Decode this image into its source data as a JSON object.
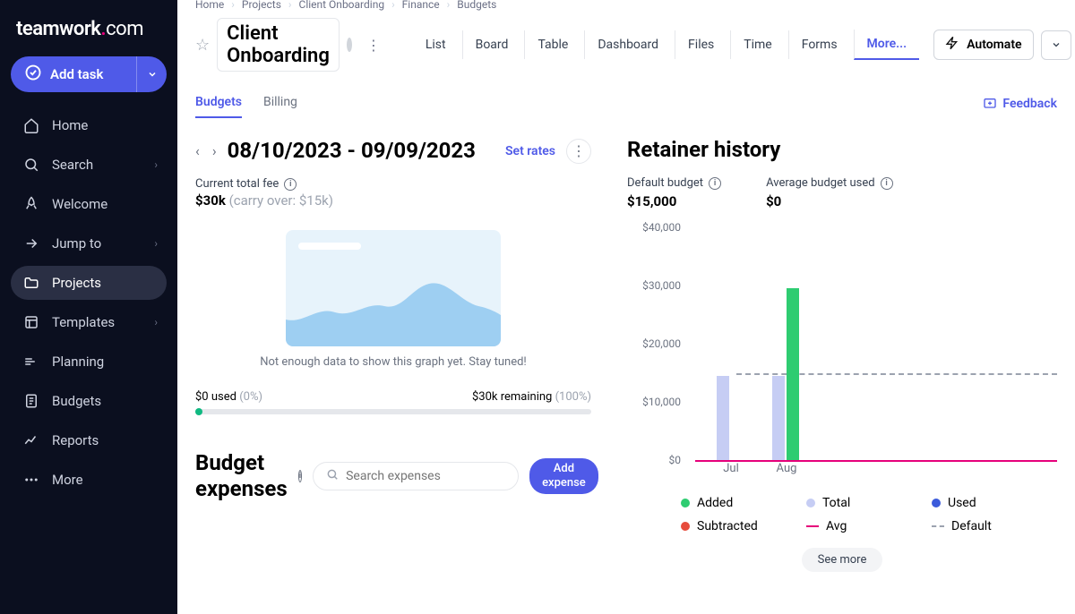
{
  "logo": {
    "main": "teamwork",
    "dot": ".",
    "com": "com"
  },
  "add_task": "Add task",
  "nav": [
    {
      "label": "Home",
      "icon": "home",
      "chev": false
    },
    {
      "label": "Search",
      "icon": "search",
      "chev": true
    },
    {
      "label": "Welcome",
      "icon": "rocket",
      "chev": false
    },
    {
      "label": "Jump to",
      "icon": "jump",
      "chev": true
    },
    {
      "label": "Projects",
      "icon": "folder",
      "chev": false,
      "active": true
    },
    {
      "label": "Templates",
      "icon": "templates",
      "chev": true
    },
    {
      "label": "Planning",
      "icon": "planning",
      "chev": false
    },
    {
      "label": "Budgets",
      "icon": "budgets",
      "chev": false
    },
    {
      "label": "Reports",
      "icon": "reports",
      "chev": false
    },
    {
      "label": "More",
      "icon": "more",
      "chev": false
    }
  ],
  "breadcrumbs": [
    "Home",
    "Projects",
    "Client Onboarding",
    "Finance",
    "Budgets"
  ],
  "project_title": "Client Onboarding",
  "view_tabs": [
    "List",
    "Board",
    "Table",
    "Dashboard",
    "Files",
    "Time",
    "Forms"
  ],
  "more_tab": "More...",
  "automate": "Automate",
  "subtabs": {
    "budgets": "Budgets",
    "billing": "Billing"
  },
  "feedback": "Feedback",
  "period": {
    "title": "08/10/2023 - 09/09/2023",
    "set_rates": "Set rates",
    "fee_label": "Current total fee",
    "fee_value": "$30k",
    "carry_over": "(carry over: $15k)"
  },
  "placeholder_text": "Not enough data to show this graph yet. Stay tuned!",
  "progress": {
    "used_label": "$0 used",
    "used_pct": "(0%)",
    "remaining_label": "$30k remaining",
    "remaining_pct": "(100%)"
  },
  "expenses": {
    "title": "Budget expenses",
    "search_placeholder": "Search expenses",
    "add": "Add expense"
  },
  "retainer": {
    "title": "Retainer history",
    "default_label": "Default budget",
    "default_value": "$15,000",
    "avg_label": "Average budget used",
    "avg_value": "$0",
    "chart": {
      "ylim": [
        0,
        40000
      ],
      "yticks": [
        0,
        10000,
        20000,
        30000,
        40000
      ],
      "ytick_labels": [
        "$0",
        "$10,000",
        "$20,000",
        "$30,000",
        "$40,000"
      ],
      "default_budget": 15000,
      "avg_used": 0,
      "months": [
        {
          "label": "Jul",
          "total": 14500,
          "added": 0
        },
        {
          "label": "Aug",
          "total": 14500,
          "added": 29500
        }
      ],
      "colors": {
        "added": "#2ecc71",
        "total": "#c6cdf4",
        "used": "#3b5bdb",
        "subtracted": "#e74c3c",
        "avg": "#e6007a",
        "default": "#9ca3af",
        "grid": "#f3f4f6"
      }
    },
    "legend": [
      {
        "label": "Added",
        "type": "dot",
        "color": "#2ecc71"
      },
      {
        "label": "Total",
        "type": "dot",
        "color": "#c6cdf4"
      },
      {
        "label": "Used",
        "type": "dot",
        "color": "#3b5bdb"
      },
      {
        "label": "Subtracted",
        "type": "dot",
        "color": "#e74c3c"
      },
      {
        "label": "Avg",
        "type": "line",
        "color": "#e6007a"
      },
      {
        "label": "Default",
        "type": "dash",
        "color": "#9ca3af"
      }
    ],
    "see_more": "See more"
  }
}
